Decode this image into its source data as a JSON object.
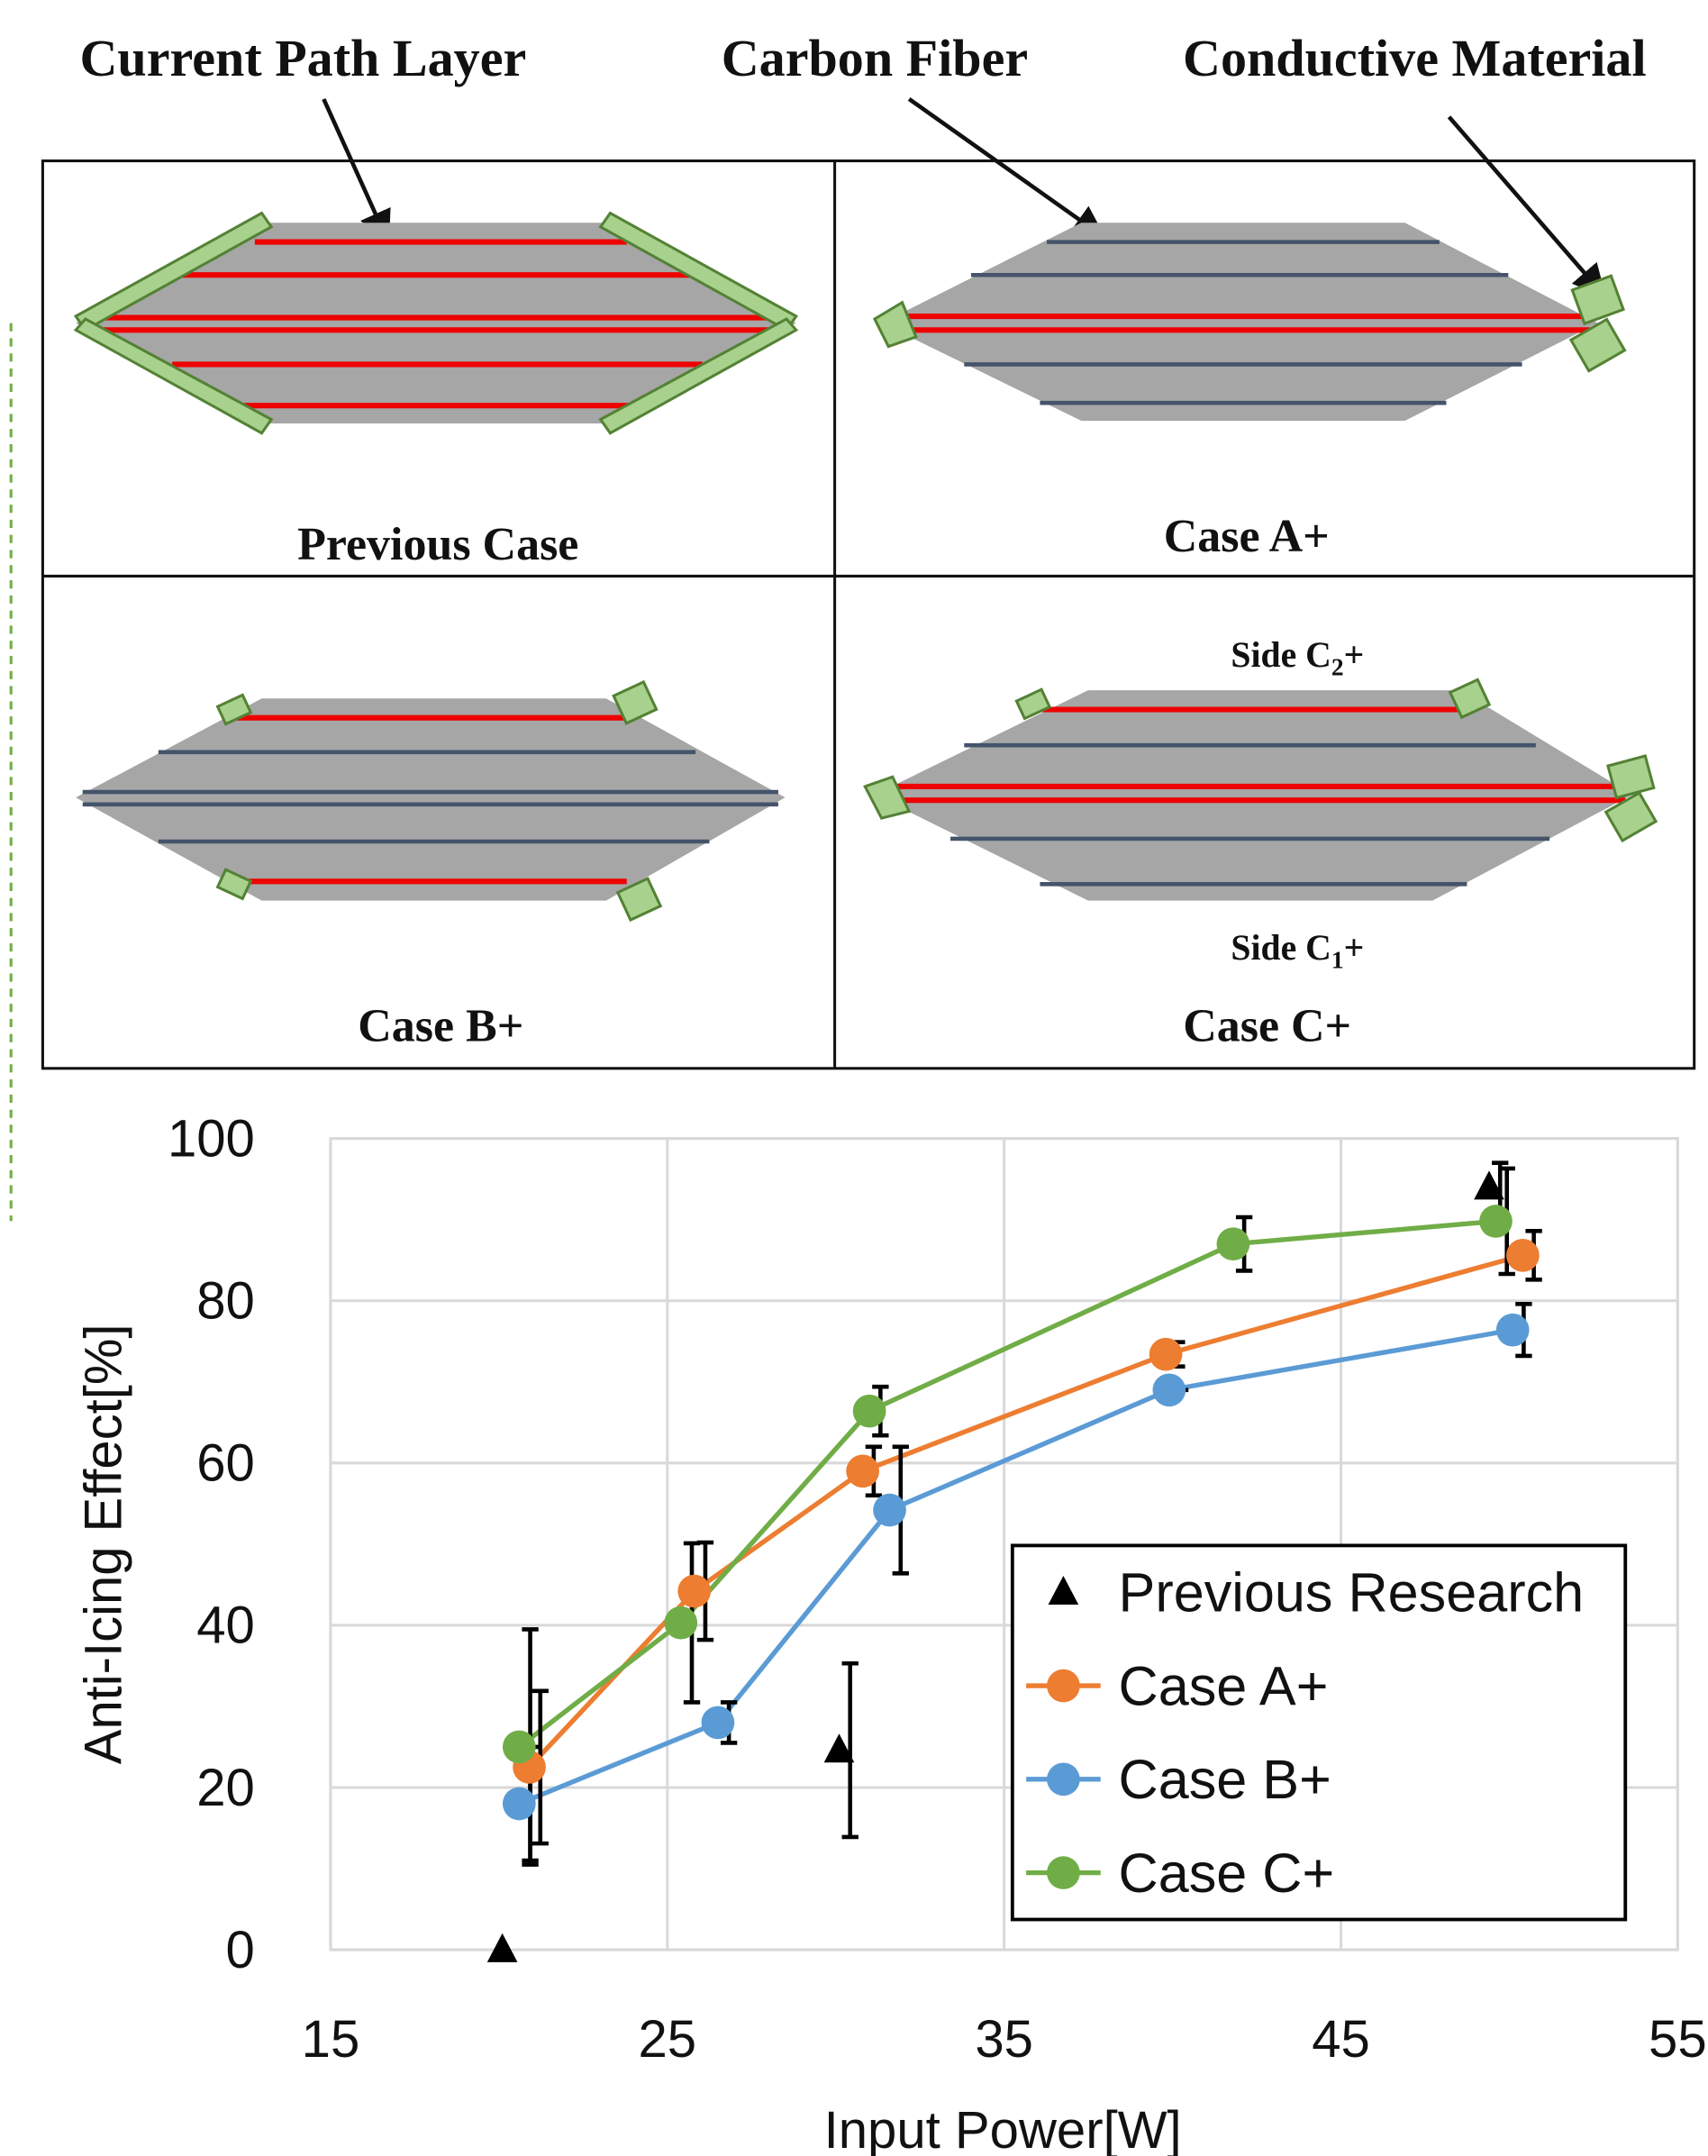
{
  "diagram": {
    "callouts": [
      "Current Path Layer",
      "Carbon Fiber",
      "Conductive Material"
    ],
    "panels": [
      "Previous Case",
      "Case A+",
      "Case B+",
      "Case C+"
    ],
    "side_c2": {
      "prefix": "Side C",
      "sub": "2",
      "suffix": "+"
    },
    "side_c1": {
      "prefix": "Side C",
      "sub": "1",
      "suffix": "+"
    }
  },
  "chart_data": {
    "type": "scatter",
    "x_label": "Input Power[W]",
    "y_label": "Anti-Icing Effect[%]",
    "xlim": [
      15,
      55
    ],
    "xticks": [
      15,
      25,
      35,
      45,
      55
    ],
    "ylim": [
      0,
      100
    ],
    "yticks": [
      0,
      20,
      40,
      60,
      80,
      100
    ],
    "grid": true,
    "legend": "lower right",
    "series": [
      {
        "name": "Previous Research",
        "color": "#000000",
        "marker": "triangle",
        "line": false,
        "x": [
          20.1,
          30.1,
          49.4
        ],
        "values": [
          0,
          24.6,
          94
        ],
        "errors": [
          null,
          10.7,
          3
        ]
      },
      {
        "name": "Case A+",
        "color": "#ed7d31",
        "marker": "circle",
        "line": true,
        "x": [
          20.9,
          25.8,
          30.8,
          39.8,
          50.4
        ],
        "values": [
          22.5,
          44.2,
          59,
          73.4,
          85.6
        ],
        "errors": [
          9.4,
          6,
          3,
          1.5,
          3
        ]
      },
      {
        "name": "Case B+",
        "color": "#5b9bd5",
        "marker": "circle",
        "line": true,
        "x": [
          20.6,
          26.5,
          31.6,
          39.9,
          50.1
        ],
        "values": [
          18,
          28,
          54.2,
          69,
          76.4
        ],
        "errors": [
          7,
          2.5,
          7.8,
          0,
          3.2
        ]
      },
      {
        "name": "Case C+",
        "color": "#70ad47",
        "marker": "circle",
        "line": true,
        "x": [
          20.6,
          25.4,
          31,
          41.8,
          49.6
        ],
        "values": [
          25,
          40.3,
          66.4,
          87,
          89.8
        ],
        "errors": [
          14.5,
          9.8,
          3,
          3.3,
          6.5
        ]
      }
    ]
  }
}
